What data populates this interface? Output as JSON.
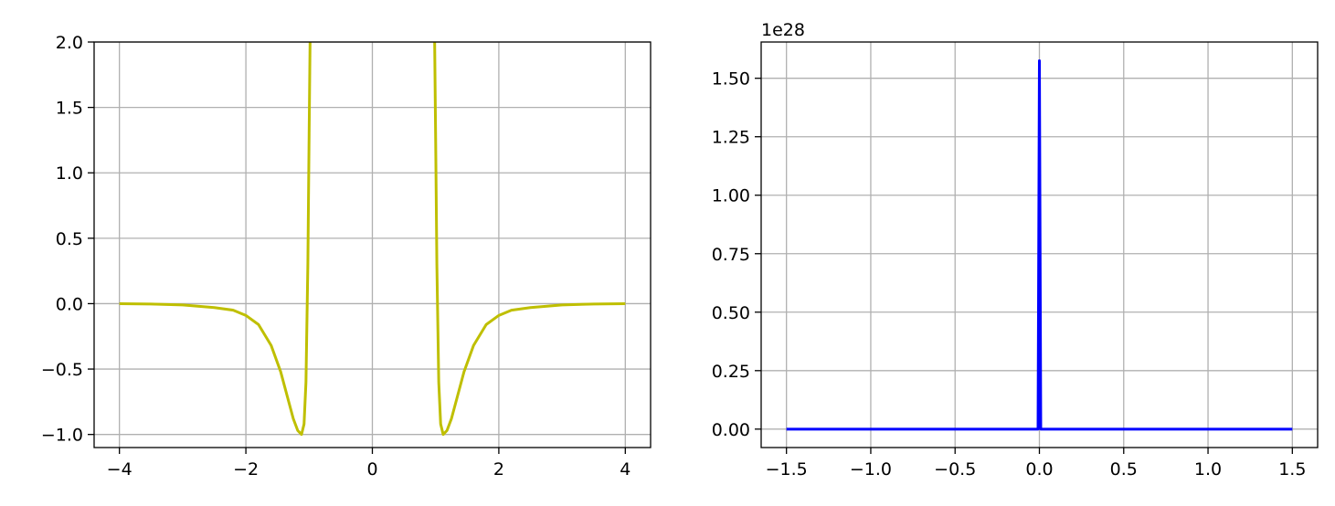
{
  "chart_data": [
    {
      "type": "line",
      "title": "",
      "xlabel": "",
      "ylabel": "",
      "grid": true,
      "xlim": [
        -4.4,
        4.4
      ],
      "ylim": [
        -1.1,
        2.0
      ],
      "xticks": [
        -4,
        -2,
        0,
        2,
        4
      ],
      "xtick_labels": [
        "−4",
        "−2",
        "0",
        "2",
        "4"
      ],
      "yticks": [
        -1.0,
        -0.5,
        0.0,
        0.5,
        1.0,
        1.5,
        2.0
      ],
      "ytick_labels": [
        "−1.0",
        "−0.5",
        "0.0",
        "0.5",
        "1.0",
        "1.5",
        "2.0"
      ],
      "series": [
        {
          "color": "#bfbf00",
          "segments": [
            {
              "x": [
                -4.0,
                -3.5,
                -3.0,
                -2.5,
                -2.2,
                -2.0,
                -1.8,
                -1.6,
                -1.45,
                -1.35,
                -1.25,
                -1.18,
                -1.12,
                -1.08,
                -1.05,
                -1.02,
                -1.0,
                -0.985
              ],
              "y": [
                0.0,
                -0.003,
                -0.01,
                -0.03,
                -0.05,
                -0.09,
                -0.16,
                -0.32,
                -0.52,
                -0.7,
                -0.88,
                -0.97,
                -1.0,
                -0.92,
                -0.6,
                0.3,
                1.3,
                2.0
              ]
            },
            {
              "x": [
                0.985,
                1.0,
                1.02,
                1.05,
                1.08,
                1.12,
                1.18,
                1.25,
                1.35,
                1.45,
                1.6,
                1.8,
                2.0,
                2.2,
                2.5,
                3.0,
                3.5,
                4.0
              ],
              "y": [
                2.0,
                1.3,
                0.3,
                -0.6,
                -0.92,
                -1.0,
                -0.97,
                -0.88,
                -0.7,
                -0.52,
                -0.32,
                -0.16,
                -0.09,
                -0.05,
                -0.03,
                -0.01,
                -0.003,
                0.0
              ]
            }
          ]
        }
      ]
    },
    {
      "type": "line",
      "title": "",
      "xlabel": "",
      "ylabel": "",
      "grid": true,
      "offset_label": "1e28",
      "xlim": [
        -1.65,
        1.65
      ],
      "ylim": [
        -0.0788,
        1.655
      ],
      "xticks": [
        -1.5,
        -1.0,
        -0.5,
        0.0,
        0.5,
        1.0,
        1.5
      ],
      "xtick_labels": [
        "−1.5",
        "−1.0",
        "−0.5",
        "0.0",
        "0.5",
        "1.0",
        "1.5"
      ],
      "yticks": [
        0.0,
        0.25,
        0.5,
        0.75,
        1.0,
        1.25,
        1.5
      ],
      "ytick_labels": [
        "0.00",
        "0.25",
        "0.50",
        "0.75",
        "1.00",
        "1.25",
        "1.50"
      ],
      "series": [
        {
          "color": "#0000ff",
          "segments": [
            {
              "x": [
                -1.5,
                -0.015,
                -0.008,
                0.0,
                0.008,
                0.015,
                1.5
              ],
              "y": [
                0.0,
                0.0,
                0.0,
                1.575,
                0.0,
                0.0,
                0.0
              ]
            }
          ]
        }
      ]
    }
  ]
}
